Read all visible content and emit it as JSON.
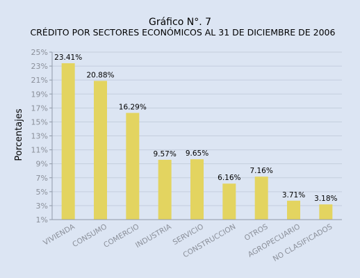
{
  "chart_data": {
    "type": "bar",
    "title": "Gráfico N°. 7",
    "subtitle": "CRÉDITO POR SECTORES ECONÓMICOS AL 31 DE DICIEMBRE DE 2006",
    "xlabel": "",
    "ylabel": "Porcentajes",
    "categories": [
      "VIVIENDA",
      "CONSUMO",
      "COMERCIO",
      "INDUSTRIA",
      "SERVICIO",
      "CONSTRUCCION",
      "OTROS",
      "AGROPECUARIO",
      "NO CLASIFICADOS"
    ],
    "values": [
      23.41,
      20.88,
      16.29,
      9.57,
      9.65,
      6.16,
      7.16,
      3.71,
      3.18
    ],
    "data_labels": [
      "23.41%",
      "20.88%",
      "16.29%",
      "9.57%",
      "9.65%",
      "6.16%",
      "7.16%",
      "3.71%",
      "3.18%"
    ],
    "ylim": [
      1,
      25
    ],
    "yticks": [
      1,
      3,
      5,
      7,
      9,
      11,
      13,
      15,
      17,
      19,
      21,
      23,
      25
    ],
    "ytick_labels": [
      "1%",
      "3%",
      "5%",
      "7%",
      "9%",
      "11%",
      "13%",
      "15%",
      "17%",
      "19%",
      "21%",
      "23%",
      "25%"
    ],
    "grid": true,
    "legend": "none",
    "colors": {
      "bar": "#e3d460",
      "background": "#dce5f3",
      "grid": "#c4cede",
      "axis": "#8f99a8",
      "tick_text": "#8a8f99",
      "label_text": "#000000"
    }
  }
}
